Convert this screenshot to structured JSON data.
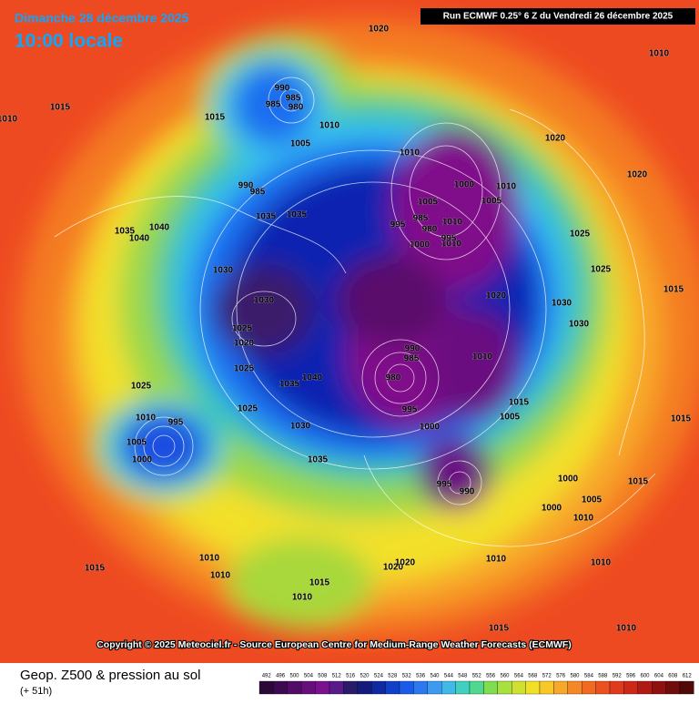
{
  "header": {
    "title": "Dimanche 28 décembre 2025",
    "subtitle": "10:00 locale",
    "run": "Run ECMWF 0.25° 6 Z du Vendredi 26 décembre 2025"
  },
  "footer": {
    "copyright": "Copyright © 2025 Meteociel.fr - Source European Centre for Medium-Range Weather Forecasts (ECMWF)",
    "product": "Geop. Z500 & pression au sol",
    "lead": "(+ 51h)"
  },
  "colorbar": {
    "ticks": [
      492,
      496,
      500,
      504,
      508,
      512,
      516,
      520,
      524,
      528,
      532,
      536,
      540,
      544,
      548,
      552,
      556,
      560,
      564,
      568,
      572,
      576,
      580,
      584,
      588,
      592,
      596,
      600,
      604,
      608,
      612
    ]
  },
  "isobars": [
    "1020",
    "1010",
    "1010",
    "1015",
    "1015",
    "990",
    "985",
    "985",
    "980",
    "1010",
    "1005",
    "990",
    "985",
    "1035",
    "1040",
    "1035",
    "1040",
    "1035",
    "1030",
    "1030",
    "1025",
    "1020",
    "1025",
    "1025",
    "1040",
    "1035",
    "1030",
    "1025",
    "1010",
    "1005",
    "1000",
    "995",
    "1010",
    "995",
    "985",
    "980",
    "1000",
    "1010",
    "1005",
    "1005",
    "1010",
    "1000",
    "995",
    "1010",
    "1020",
    "1020",
    "1025",
    "1030",
    "1025",
    "1030",
    "990",
    "985",
    "980",
    "995",
    "1000",
    "1010",
    "1015",
    "1005",
    "995",
    "990",
    "1000",
    "1010",
    "1010",
    "1010",
    "1020",
    "1020",
    "1035",
    "1015",
    "1010",
    "1015",
    "1010",
    "1010",
    "1020",
    "1015",
    "1015",
    "1010",
    "1000",
    "1005",
    "1015",
    "1015"
  ]
}
